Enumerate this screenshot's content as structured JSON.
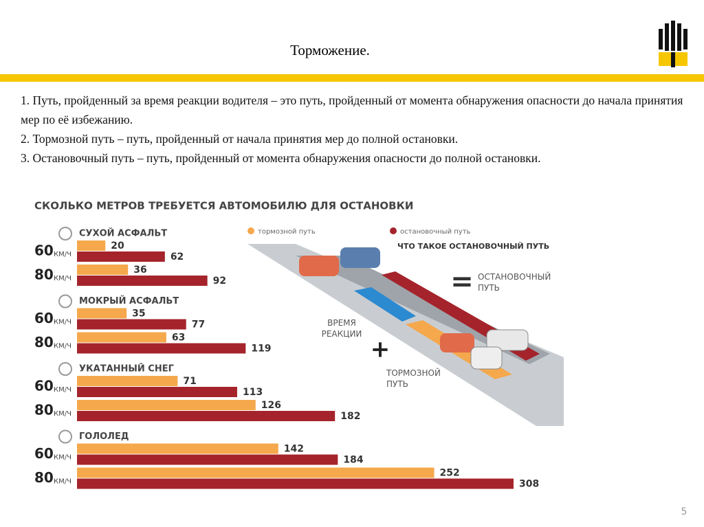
{
  "slide": {
    "title": "Торможение.",
    "paragraphs": [
      "1. Путь, пройденный за время реакции водителя – это путь, пройденный от момента обнаружения опасности до начала принятия мер по её избежанию.",
      "2. Тормозной путь – путь, пройденный от начала принятия мер до полной остановки.",
      "3. Остановочный путь – путь, пройденный от момента обнаружения опасности до полной остановки."
    ],
    "page_number": "5"
  },
  "chart_data": {
    "type": "bar",
    "title": "СКОЛЬКО МЕТРОВ ТРЕБУЕТСЯ АВТОМОБИЛЮ ДЛЯ ОСТАНОВКИ",
    "conditions": [
      "СУХОЙ АСФАЛЬТ",
      "МОКРЫЙ АСФАЛЬТ",
      "УКАТАННЫЙ СНЕГ",
      "ГОЛОЛЕД"
    ],
    "speeds": [
      "60",
      "80",
      "60",
      "80",
      "60",
      "80",
      "60",
      "80"
    ],
    "speed_unit": "КМ/Ч",
    "series": [
      {
        "name": "тормозной путь",
        "color": "#f5a84c",
        "values": [
          20,
          36,
          35,
          63,
          71,
          126,
          142,
          252
        ]
      },
      {
        "name": "остановочный путь",
        "color": "#a5242c",
        "values": [
          62,
          92,
          77,
          119,
          113,
          182,
          184,
          308
        ]
      }
    ],
    "annotations": {
      "heading": "ЧТО ТАКОЕ ОСТАНОВОЧНЫЙ ПУТЬ",
      "equals": "=",
      "stopping": "ОСТАНОВОЧНЫЙ ПУТЬ",
      "reaction": "ВРЕМЯ РЕАКЦИИ",
      "plus": "+",
      "braking": "ТОРМОЗНОЙ ПУТЬ"
    }
  }
}
